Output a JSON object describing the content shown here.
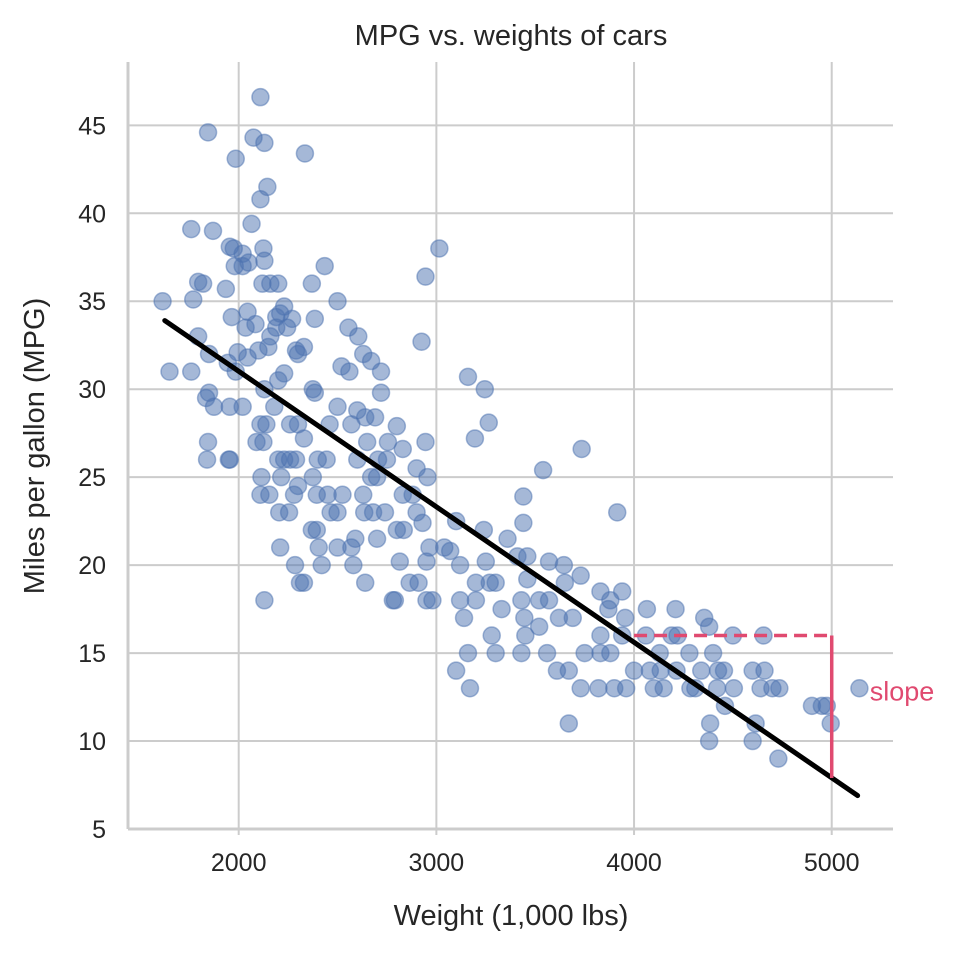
{
  "chart_data": {
    "type": "scatter",
    "title": "MPG vs. weights of cars",
    "xlabel": "Weight (1,000 lbs)",
    "ylabel": "Miles per gallon (MPG)",
    "xlim": [
      1440,
      5310
    ],
    "ylim": [
      5,
      48.6
    ],
    "xticks": [
      2000,
      3000,
      4000,
      5000
    ],
    "yticks": [
      5,
      10,
      15,
      20,
      25,
      30,
      35,
      40,
      45
    ],
    "grid": true,
    "colors": {
      "points": "#4c72b0",
      "line": "#000000",
      "annotation": "#e04a70",
      "grid": "#cccccc"
    },
    "regression_line": {
      "x": [
        1626,
        5131
      ],
      "y": [
        33.9,
        6.9
      ]
    },
    "annotation": {
      "label": "slope",
      "dashed_from": [
        4000,
        16.0
      ],
      "corner": [
        5000,
        16.0
      ],
      "to": [
        5000,
        7.9
      ]
    },
    "points": [
      [
        2110,
        46.6
      ],
      [
        1845,
        44.6
      ],
      [
        2075,
        44.3
      ],
      [
        2130,
        44.0
      ],
      [
        2335,
        43.4
      ],
      [
        1985,
        43.1
      ],
      [
        2145,
        41.5
      ],
      [
        2110,
        40.8
      ],
      [
        2065,
        39.4
      ],
      [
        1760,
        39.1
      ],
      [
        1870,
        39.0
      ],
      [
        1955,
        38.1
      ],
      [
        1975,
        38.0
      ],
      [
        2125,
        38.0
      ],
      [
        3015,
        38.0
      ],
      [
        2020,
        37.7
      ],
      [
        2435,
        37.0
      ],
      [
        2130,
        37.3
      ],
      [
        1980,
        37.0
      ],
      [
        2020,
        37.0
      ],
      [
        2050,
        37.2
      ],
      [
        2945,
        36.4
      ],
      [
        1795,
        36.1
      ],
      [
        1820,
        36.0
      ],
      [
        2120,
        36.0
      ],
      [
        2160,
        36.0
      ],
      [
        2200,
        36.0
      ],
      [
        2370,
        36.0
      ],
      [
        1935,
        35.7
      ],
      [
        1615,
        35.0
      ],
      [
        1770,
        35.1
      ],
      [
        2045,
        34.4
      ],
      [
        2500,
        35.0
      ],
      [
        2190,
        34.1
      ],
      [
        2230,
        34.7
      ],
      [
        2210,
        34.3
      ],
      [
        2270,
        34.0
      ],
      [
        2385,
        34.0
      ],
      [
        1965,
        34.1
      ],
      [
        2190,
        33.5
      ],
      [
        2555,
        33.5
      ],
      [
        1795,
        33.0
      ],
      [
        2035,
        33.5
      ],
      [
        2085,
        33.7
      ],
      [
        2160,
        33.0
      ],
      [
        2245,
        33.5
      ],
      [
        2605,
        33.0
      ],
      [
        2150,
        32.4
      ],
      [
        2330,
        32.4
      ],
      [
        2290,
        32.2
      ],
      [
        2300,
        32.0
      ],
      [
        2630,
        32.0
      ],
      [
        2925,
        32.7
      ],
      [
        1850,
        32.0
      ],
      [
        1945,
        31.5
      ],
      [
        1995,
        32.1
      ],
      [
        2045,
        31.8
      ],
      [
        2100,
        32.2
      ],
      [
        2520,
        31.3
      ],
      [
        2560,
        31.0
      ],
      [
        2670,
        31.6
      ],
      [
        2720,
        31.0
      ],
      [
        3160,
        30.7
      ],
      [
        3245,
        30.0
      ],
      [
        1650,
        31.0
      ],
      [
        1760,
        31.0
      ],
      [
        1985,
        31.0
      ],
      [
        2200,
        30.5
      ],
      [
        2375,
        30.0
      ],
      [
        2385,
        29.8
      ],
      [
        2130,
        30.0
      ],
      [
        2230,
        30.9
      ],
      [
        1850,
        29.8
      ],
      [
        1835,
        29.5
      ],
      [
        1955,
        29.0
      ],
      [
        1875,
        29.0
      ],
      [
        2020,
        29.0
      ],
      [
        2180,
        29.0
      ],
      [
        2720,
        29.8
      ],
      [
        2500,
        29.0
      ],
      [
        2600,
        28.8
      ],
      [
        2640,
        28.4
      ],
      [
        2690,
        28.4
      ],
      [
        2800,
        27.9
      ],
      [
        2260,
        28.0
      ],
      [
        2140,
        28.0
      ],
      [
        2110,
        28.0
      ],
      [
        2300,
        28.0
      ],
      [
        2460,
        28.0
      ],
      [
        2570,
        28.0
      ],
      [
        3265,
        28.1
      ],
      [
        2125,
        27.0
      ],
      [
        2090,
        27.0
      ],
      [
        1845,
        27.0
      ],
      [
        2330,
        27.2
      ],
      [
        2945,
        27.0
      ],
      [
        3195,
        27.2
      ],
      [
        2650,
        27.0
      ],
      [
        2755,
        27.0
      ],
      [
        2830,
        26.6
      ],
      [
        3735,
        26.6
      ],
      [
        1955,
        26.0
      ],
      [
        1950,
        26.0
      ],
      [
        1840,
        26.0
      ],
      [
        2200,
        26.0
      ],
      [
        2230,
        26.0
      ],
      [
        2260,
        26.0
      ],
      [
        2290,
        26.0
      ],
      [
        2400,
        26.0
      ],
      [
        2445,
        26.0
      ],
      [
        2600,
        26.0
      ],
      [
        2705,
        26.0
      ],
      [
        2750,
        26.0
      ],
      [
        3540,
        25.4
      ],
      [
        2900,
        25.5
      ],
      [
        2115,
        25.0
      ],
      [
        2215,
        25.0
      ],
      [
        2375,
        25.0
      ],
      [
        2670,
        25.0
      ],
      [
        2700,
        25.0
      ],
      [
        2955,
        25.0
      ],
      [
        2300,
        24.5
      ],
      [
        2110,
        24.0
      ],
      [
        2155,
        24.0
      ],
      [
        2280,
        24.0
      ],
      [
        2395,
        24.0
      ],
      [
        2450,
        24.0
      ],
      [
        2525,
        24.0
      ],
      [
        2630,
        24.0
      ],
      [
        2830,
        24.0
      ],
      [
        2880,
        24.0
      ],
      [
        3440,
        23.9
      ],
      [
        3915,
        23.0
      ],
      [
        2205,
        23.0
      ],
      [
        2255,
        23.0
      ],
      [
        2465,
        23.0
      ],
      [
        2500,
        23.0
      ],
      [
        2635,
        23.0
      ],
      [
        2680,
        23.0
      ],
      [
        2740,
        23.0
      ],
      [
        2900,
        23.0
      ],
      [
        2930,
        22.4
      ],
      [
        3100,
        22.5
      ],
      [
        3440,
        22.4
      ],
      [
        2370,
        22.0
      ],
      [
        2395,
        22.0
      ],
      [
        2800,
        22.0
      ],
      [
        2835,
        22.0
      ],
      [
        3240,
        22.0
      ],
      [
        3360,
        21.5
      ],
      [
        2590,
        21.5
      ],
      [
        2210,
        21.0
      ],
      [
        2405,
        21.0
      ],
      [
        2500,
        21.0
      ],
      [
        2570,
        21.0
      ],
      [
        2700,
        21.5
      ],
      [
        2965,
        21.0
      ],
      [
        3040,
        21.0
      ],
      [
        3070,
        20.8
      ],
      [
        2285,
        20.0
      ],
      [
        2420,
        20.0
      ],
      [
        2580,
        20.0
      ],
      [
        2815,
        20.2
      ],
      [
        2950,
        20.2
      ],
      [
        3120,
        20.0
      ],
      [
        3250,
        20.2
      ],
      [
        3410,
        20.5
      ],
      [
        3460,
        20.5
      ],
      [
        3570,
        20.2
      ],
      [
        3645,
        20.0
      ],
      [
        2640,
        19.0
      ],
      [
        2310,
        19.0
      ],
      [
        2330,
        19.0
      ],
      [
        2865,
        19.0
      ],
      [
        2910,
        19.0
      ],
      [
        3200,
        19.0
      ],
      [
        3270,
        19.0
      ],
      [
        3300,
        19.0
      ],
      [
        3460,
        19.2
      ],
      [
        3650,
        19.0
      ],
      [
        3730,
        19.4
      ],
      [
        3830,
        18.5
      ],
      [
        3940,
        18.5
      ],
      [
        2130,
        18.0
      ],
      [
        2780,
        18.0
      ],
      [
        2790,
        18.0
      ],
      [
        2950,
        18.0
      ],
      [
        2980,
        18.0
      ],
      [
        3120,
        18.0
      ],
      [
        3200,
        18.0
      ],
      [
        3430,
        18.0
      ],
      [
        3520,
        18.0
      ],
      [
        3570,
        18.0
      ],
      [
        3880,
        18.0
      ],
      [
        3140,
        17.0
      ],
      [
        3330,
        17.5
      ],
      [
        3445,
        17.0
      ],
      [
        3620,
        17.0
      ],
      [
        3690,
        17.0
      ],
      [
        3870,
        17.5
      ],
      [
        3955,
        17.0
      ],
      [
        4065,
        17.5
      ],
      [
        4210,
        17.5
      ],
      [
        4355,
        17.0
      ],
      [
        3160,
        15.0
      ],
      [
        3280,
        16.0
      ],
      [
        3300,
        15.0
      ],
      [
        3430,
        15.0
      ],
      [
        3450,
        16.0
      ],
      [
        3560,
        15.0
      ],
      [
        3520,
        16.5
      ],
      [
        3830,
        16.0
      ],
      [
        3940,
        16.0
      ],
      [
        4060,
        16.0
      ],
      [
        4190,
        16.0
      ],
      [
        4220,
        16.0
      ],
      [
        4380,
        16.5
      ],
      [
        4500,
        16.0
      ],
      [
        4655,
        16.0
      ],
      [
        3830,
        15.0
      ],
      [
        3880,
        15.0
      ],
      [
        3610,
        14.0
      ],
      [
        3750,
        15.0
      ],
      [
        4130,
        15.0
      ],
      [
        4280,
        15.0
      ],
      [
        4400,
        15.0
      ],
      [
        3100,
        14.0
      ],
      [
        3670,
        14.0
      ],
      [
        4000,
        14.0
      ],
      [
        4080,
        14.0
      ],
      [
        4135,
        14.0
      ],
      [
        4215,
        14.0
      ],
      [
        4340,
        14.0
      ],
      [
        4425,
        14.0
      ],
      [
        4455,
        14.0
      ],
      [
        4600,
        14.0
      ],
      [
        4660,
        14.0
      ],
      [
        3170,
        13.0
      ],
      [
        3730,
        13.0
      ],
      [
        3820,
        13.0
      ],
      [
        3900,
        13.0
      ],
      [
        3960,
        13.0
      ],
      [
        4100,
        13.0
      ],
      [
        4150,
        13.0
      ],
      [
        4285,
        13.0
      ],
      [
        4310,
        13.0
      ],
      [
        4420,
        13.0
      ],
      [
        4505,
        13.0
      ],
      [
        4640,
        13.0
      ],
      [
        4700,
        13.0
      ],
      [
        4735,
        13.0
      ],
      [
        5140,
        13.0
      ],
      [
        4460,
        12.0
      ],
      [
        4900,
        12.0
      ],
      [
        4950,
        12.0
      ],
      [
        4975,
        12.0
      ],
      [
        3670,
        11.0
      ],
      [
        4385,
        11.0
      ],
      [
        4615,
        11.0
      ],
      [
        4995,
        11.0
      ],
      [
        4380,
        10.0
      ],
      [
        4600,
        10.0
      ],
      [
        4730,
        9.0
      ]
    ]
  }
}
